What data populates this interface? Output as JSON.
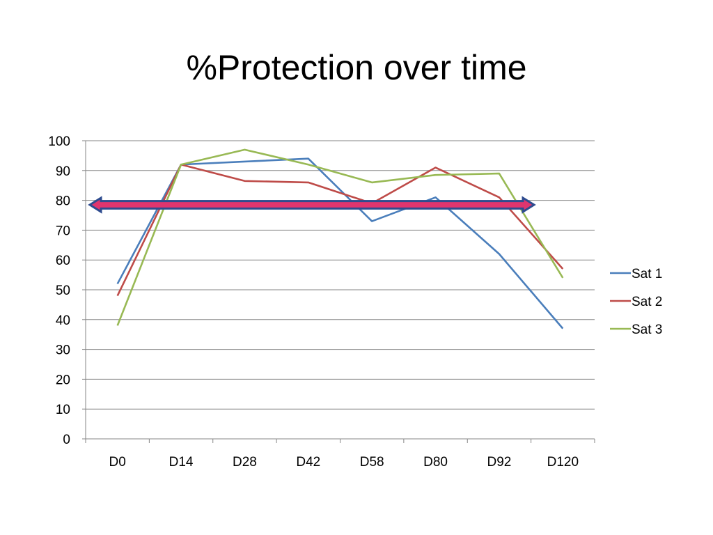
{
  "title": "%Protection over time",
  "chart_data": {
    "type": "line",
    "title": "%Protection over time",
    "categories": [
      "D0",
      "D14",
      "D28",
      "D42",
      "D58",
      "D80",
      "D92",
      "D120"
    ],
    "series": [
      {
        "name": "Sat 1",
        "color": "#4a7ebb",
        "values": [
          52,
          92,
          93,
          94,
          73,
          81,
          62,
          37
        ]
      },
      {
        "name": "Sat 2",
        "color": "#be4b48",
        "values": [
          48,
          92,
          86.5,
          86,
          79,
          91,
          81,
          57
        ]
      },
      {
        "name": "Sat 3",
        "color": "#98b954",
        "values": [
          38,
          92,
          97,
          92,
          86,
          88.5,
          89,
          54
        ]
      }
    ],
    "ylim": [
      0,
      100
    ],
    "yticks": [
      0,
      10,
      20,
      30,
      40,
      50,
      60,
      70,
      80,
      90,
      100
    ],
    "grid": true,
    "legend_position": "right",
    "annotation": {
      "type": "double-arrow",
      "y": 78.5,
      "color": "#e0356e",
      "outline": "#2e4c8f"
    }
  }
}
